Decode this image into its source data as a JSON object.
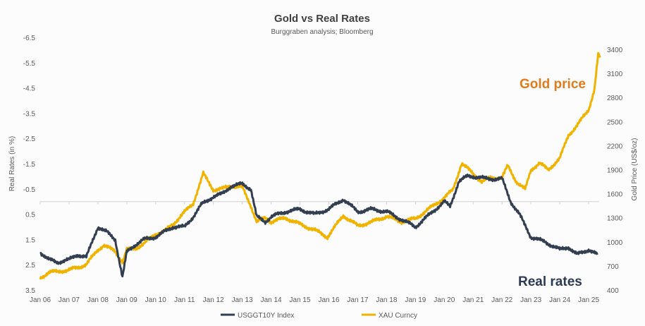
{
  "chart_data": {
    "type": "line",
    "title": "Gold vs Real Rates",
    "subtitle": "Burggraben analysis; Bloomberg",
    "ylabel_left": "Real Rates (in %)",
    "ylabel_right": "Gold Price (US$/oz)",
    "left_axis": {
      "range": [
        -6.5,
        3.5
      ],
      "inverted": true,
      "ticks": [
        "-6.5",
        "-5.5",
        "-4.5",
        "-3.5",
        "-2.5",
        "-1.5",
        "-0.5",
        "0.5",
        "1.5",
        "2.5",
        "3.5"
      ]
    },
    "right_axis": {
      "range": [
        400,
        3400
      ],
      "ticks": [
        "3400",
        "3100",
        "2800",
        "2500",
        "2200",
        "1900",
        "1600",
        "1300",
        "1000",
        "700",
        "400"
      ]
    },
    "x_ticks": [
      "Jan 06",
      "Jan 07",
      "Jan 08",
      "Jan 09",
      "Jan 10",
      "Jan 11",
      "Jan 12",
      "Jan 13",
      "Jan 14",
      "Jan 15",
      "Jan 16",
      "Jan 17",
      "Jan 18",
      "Jan 19",
      "Jan 20",
      "Jan 21",
      "Jan 22",
      "Jan 23",
      "Jan 24",
      "Jan 25"
    ],
    "x_range": [
      2006.0,
      2025.4
    ],
    "series": [
      {
        "name": "USGGT10Y Index",
        "axis": "left",
        "color": "#333f50",
        "x": [
          2006.0,
          2006.3,
          2006.6,
          2007.0,
          2007.3,
          2007.6,
          2008.0,
          2008.3,
          2008.6,
          2008.85,
          2009.0,
          2009.3,
          2009.6,
          2010.0,
          2010.3,
          2010.6,
          2011.0,
          2011.3,
          2011.6,
          2012.0,
          2012.3,
          2012.6,
          2013.0,
          2013.3,
          2013.5,
          2013.8,
          2014.0,
          2014.5,
          2015.0,
          2015.5,
          2016.0,
          2016.5,
          2017.0,
          2017.5,
          2018.0,
          2018.5,
          2019.0,
          2019.5,
          2020.0,
          2020.2,
          2020.5,
          2020.8,
          2021.0,
          2021.5,
          2022.0,
          2022.3,
          2022.6,
          2023.0,
          2023.5,
          2024.0,
          2024.3,
          2024.6,
          2025.0,
          2025.3
        ],
        "values": [
          2.0,
          2.3,
          2.4,
          2.3,
          2.1,
          2.2,
          1.0,
          1.2,
          1.5,
          3.0,
          2.0,
          1.7,
          1.5,
          1.4,
          1.2,
          1.0,
          1.0,
          0.6,
          0.1,
          -0.2,
          -0.3,
          -0.6,
          -0.7,
          -0.5,
          0.6,
          0.8,
          0.6,
          0.4,
          0.3,
          0.5,
          0.3,
          -0.1,
          0.4,
          0.3,
          0.4,
          0.7,
          1.0,
          0.5,
          0.0,
          0.2,
          -0.8,
          -1.0,
          -1.0,
          -0.9,
          -0.9,
          0.0,
          0.5,
          1.4,
          1.6,
          1.9,
          1.8,
          2.1,
          1.9,
          2.1
        ]
      },
      {
        "name": "XAU Curncy",
        "axis": "right",
        "color": "#f0b400",
        "x": [
          2006.0,
          2006.3,
          2006.6,
          2007.0,
          2007.3,
          2007.6,
          2008.0,
          2008.2,
          2008.6,
          2008.85,
          2009.0,
          2009.3,
          2009.6,
          2010.0,
          2010.3,
          2010.6,
          2011.0,
          2011.3,
          2011.65,
          2012.0,
          2012.3,
          2012.6,
          2013.0,
          2013.3,
          2013.5,
          2013.8,
          2014.0,
          2014.5,
          2015.0,
          2015.5,
          2015.95,
          2016.5,
          2017.0,
          2017.5,
          2018.0,
          2018.5,
          2019.0,
          2019.5,
          2020.0,
          2020.3,
          2020.6,
          2021.0,
          2021.3,
          2021.6,
          2022.0,
          2022.2,
          2022.5,
          2022.8,
          2023.0,
          2023.3,
          2023.6,
          2024.0,
          2024.3,
          2024.6,
          2025.0,
          2025.2,
          2025.33,
          2025.4
        ],
        "values": [
          550,
          620,
          630,
          650,
          680,
          720,
          900,
          960,
          880,
          750,
          900,
          920,
          980,
          1100,
          1130,
          1220,
          1370,
          1480,
          1850,
          1650,
          1660,
          1700,
          1680,
          1450,
          1250,
          1300,
          1250,
          1300,
          1220,
          1150,
          1060,
          1330,
          1200,
          1250,
          1320,
          1250,
          1290,
          1420,
          1550,
          1650,
          1980,
          1850,
          1750,
          1800,
          1800,
          1950,
          1750,
          1650,
          1900,
          1980,
          1900,
          2040,
          2330,
          2450,
          2650,
          2900,
          3350,
          3300
        ]
      }
    ],
    "legend": {
      "placement": "bottom",
      "items": [
        "USGGT10Y Index",
        "XAU Curncy"
      ]
    },
    "annotations": [
      {
        "text": "Gold price",
        "color": "#e07b1e"
      },
      {
        "text": "Real rates",
        "color": "#2d3a52"
      }
    ],
    "grid": false
  }
}
